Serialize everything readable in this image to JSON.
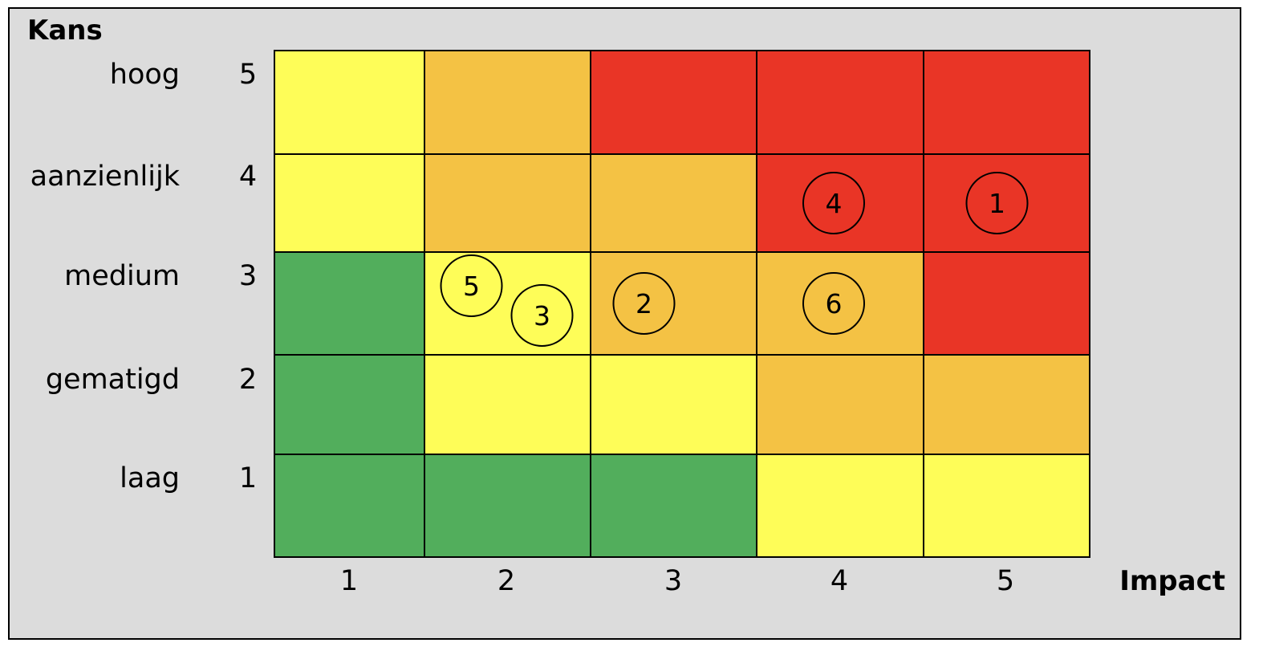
{
  "chart_data": {
    "type": "heatmap",
    "title": "",
    "ylabel": "Kans",
    "xlabel": "Impact",
    "x_ticks": [
      "1",
      "2",
      "3",
      "4",
      "5"
    ],
    "y_ticks": [
      "1",
      "2",
      "3",
      "4",
      "5"
    ],
    "y_level_names": [
      "laag",
      "gematigd",
      "medium",
      "aanzienlijk",
      "hoog"
    ],
    "colors": {
      "green": "#52ae5c",
      "yellow": "#fefd58",
      "orange": "#f4c244",
      "red": "#e93526"
    },
    "cells": [
      [
        "green",
        "green",
        "green",
        "yellow",
        "yellow"
      ],
      [
        "green",
        "yellow",
        "yellow",
        "orange",
        "orange"
      ],
      [
        "green",
        "yellow",
        "orange",
        "orange",
        "red"
      ],
      [
        "yellow",
        "orange",
        "orange",
        "red",
        "red"
      ],
      [
        "yellow",
        "orange",
        "red",
        "red",
        "red"
      ]
    ],
    "risks": [
      {
        "label": "1",
        "impact": 5,
        "kans": 4
      },
      {
        "label": "2",
        "impact": 3,
        "kans": 3
      },
      {
        "label": "3",
        "impact": 2,
        "kans": 3
      },
      {
        "label": "4",
        "impact": 4,
        "kans": 4
      },
      {
        "label": "5",
        "impact": 2,
        "kans": 3
      },
      {
        "label": "6",
        "impact": 4,
        "kans": 3
      }
    ]
  }
}
